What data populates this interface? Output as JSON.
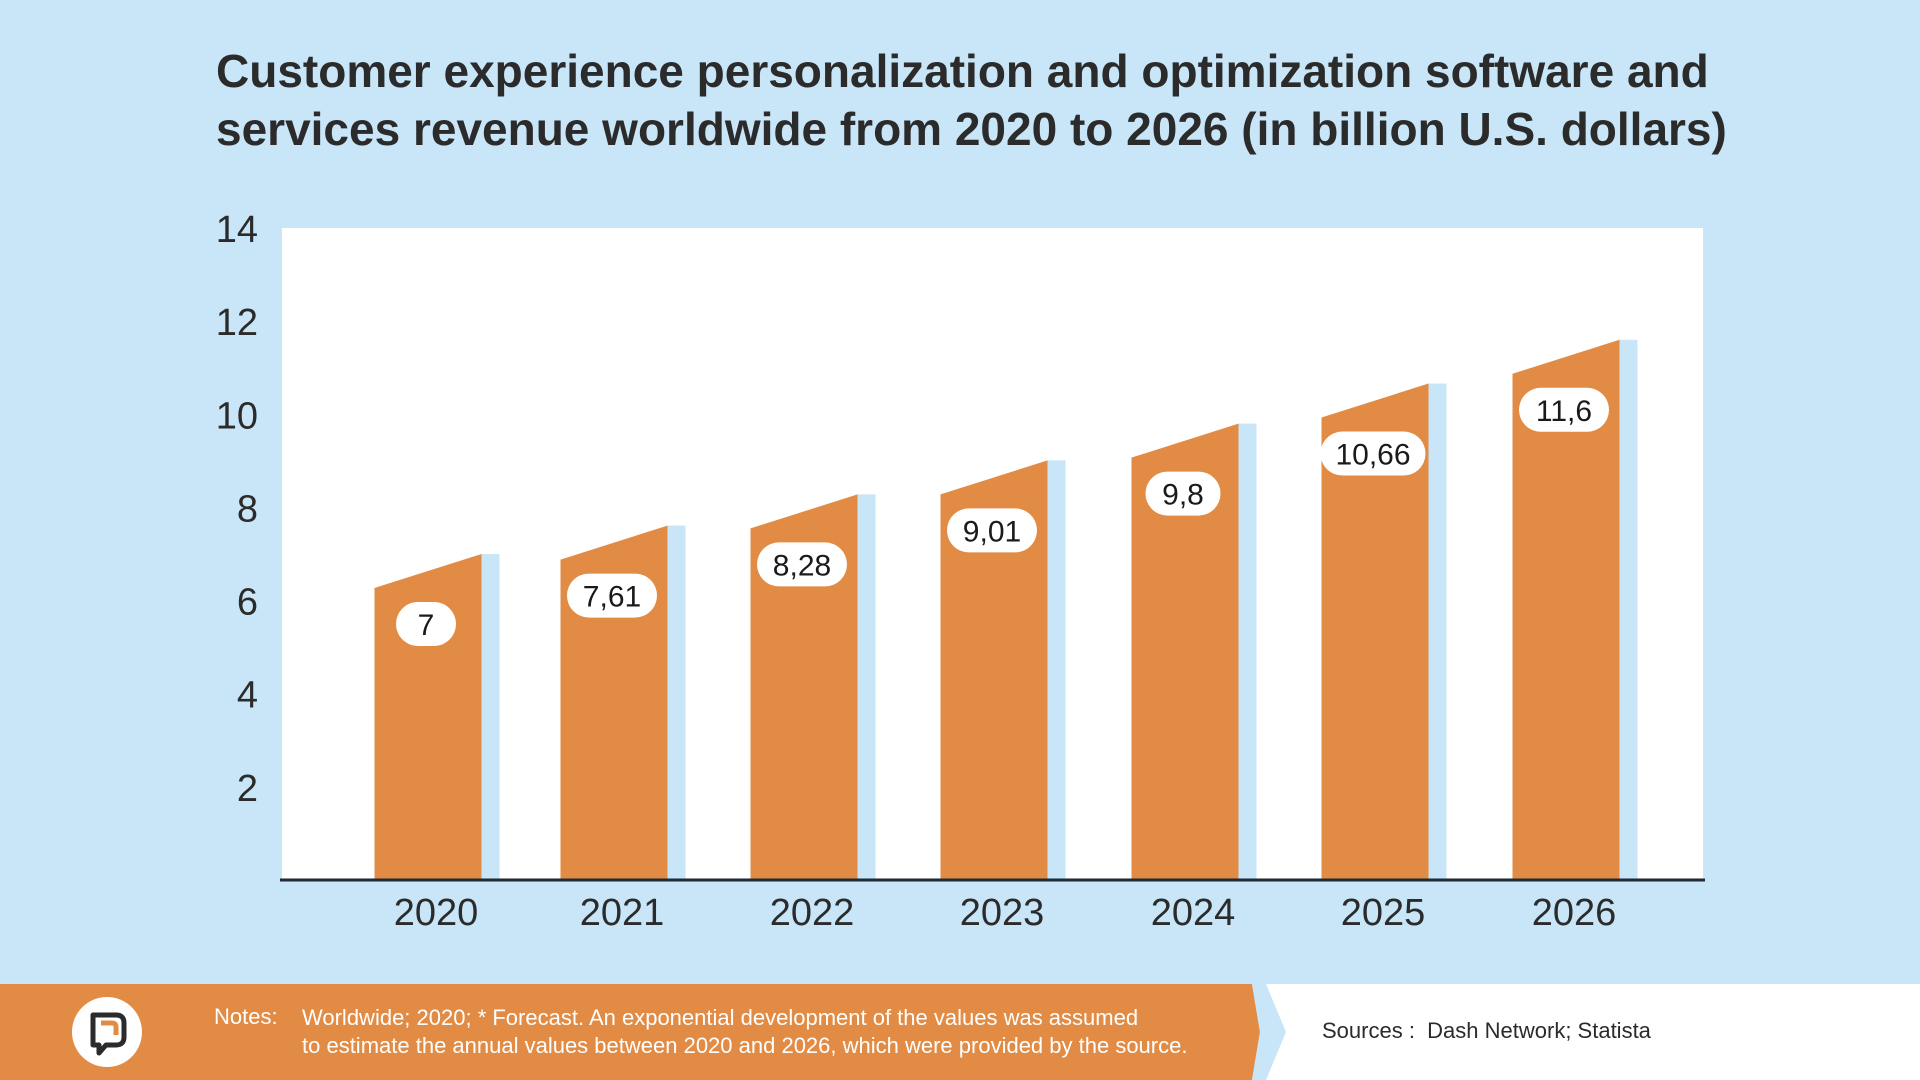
{
  "title": "Customer experience personalization and optimization software and services revenue worldwide from 2020 to 2026 (in billion U.S. dollars)",
  "colors": {
    "background": "#c8e6f8",
    "plot_background": "#ffffff",
    "bar": "#e28b44",
    "bar_side": "#c8e6f8",
    "footer": "#e28b44",
    "text": "#2b2b2b"
  },
  "chart_data": {
    "type": "bar",
    "title": "Customer experience personalization and optimization software and services revenue worldwide from 2020 to 2026 (in billion U.S. dollars)",
    "categories": [
      "2020",
      "2021",
      "2022",
      "2023",
      "2024",
      "2025",
      "2026"
    ],
    "values": [
      7,
      7.61,
      8.28,
      9.01,
      9.8,
      10.66,
      11.6
    ],
    "data_labels": [
      "7",
      "7,61",
      "8,28",
      "9,01",
      "9,8",
      "10,66",
      "11,6"
    ],
    "yticks": [
      "2",
      "4",
      "6",
      "8",
      "10",
      "12",
      "14"
    ],
    "ytick_values": [
      2,
      4,
      6,
      8,
      10,
      12,
      14
    ],
    "ylim": [
      0,
      14
    ],
    "xlabel": "",
    "ylabel": "",
    "grid": false,
    "legend": "none"
  },
  "footer": {
    "notes_label": "Notes:",
    "notes_line1": "Worldwide; 2020; * Forecast. An exponential development of the values was assumed",
    "notes_line2": "to estimate the annual values between 2020 and 2026, which were provided by the source.",
    "sources_label": "Sources :",
    "sources_text": "Dash Network; Statista",
    "logo_icon": "chat-bubble-logo-icon"
  }
}
